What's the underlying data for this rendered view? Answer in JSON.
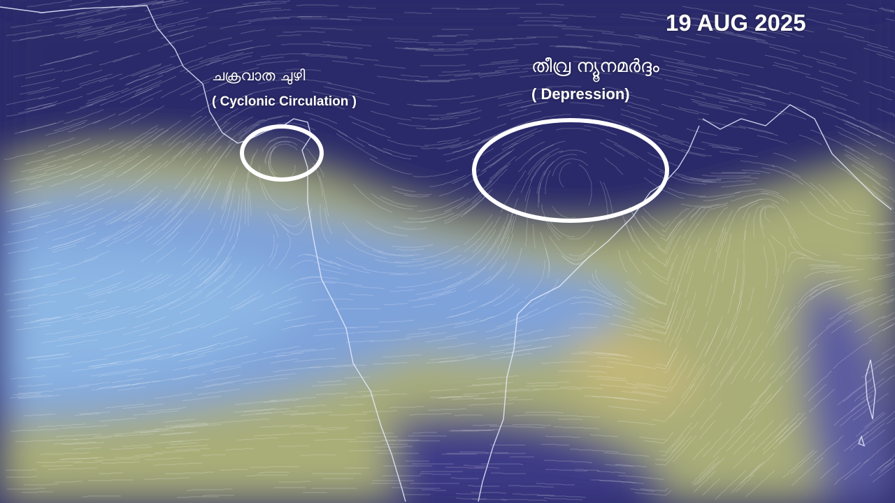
{
  "date": "19 AUG 2025",
  "annotations": {
    "cyclonic_circulation": {
      "label_ml": "ചക്രവാത ചുഴി",
      "label_en": "( Cyclonic Circulation )"
    },
    "depression": {
      "label_ml": "തീവ്ര ന്യൂനമർദ്ദം",
      "label_en": "( Depression)"
    }
  },
  "colors": {
    "calm": "#2b2a6b",
    "moderate": "#7fa3dc",
    "strong": "#b7b677",
    "annotation": "#ffffff"
  }
}
